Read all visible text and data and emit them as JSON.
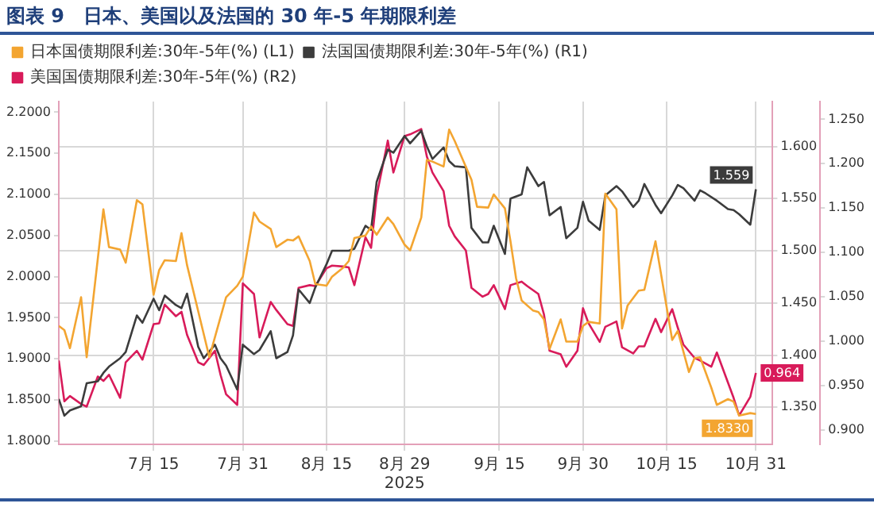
{
  "chart_data": {
    "type": "line",
    "title": "图表 9　日本、美国以及法国的 30 年-5 年期限利差",
    "xlim": [
      "2025-06-28",
      "2025-11-03"
    ],
    "xticks": [
      {
        "value": "2025-07-15",
        "label": "7月 15"
      },
      {
        "value": "2025-07-31",
        "label": "7月 31"
      },
      {
        "value": "2025-08-15",
        "label": "8月 15"
      },
      {
        "value": "2025-08-29",
        "label": "8月 29\n2025"
      },
      {
        "value": "2025-09-15",
        "label": "9月 15"
      },
      {
        "value": "2025-09-30",
        "label": "9月 30"
      },
      {
        "value": "2025-10-15",
        "label": "10月 15"
      },
      {
        "value": "2025-10-31",
        "label": "10月 31"
      }
    ],
    "ylim": [
      1.796,
      2.213
    ],
    "yticks": [
      {
        "value": 1.8,
        "label": "1.8000"
      },
      {
        "value": 1.85,
        "label": "1.8500"
      },
      {
        "value": 1.9,
        "label": "1.9000"
      },
      {
        "value": 1.95,
        "label": "1.9500"
      },
      {
        "value": 2.0,
        "label": "2.0000"
      },
      {
        "value": 2.05,
        "label": "2.0500"
      },
      {
        "value": 2.1,
        "label": "2.1000"
      },
      {
        "value": 2.15,
        "label": "2.1500"
      },
      {
        "value": 2.2,
        "label": "2.2000"
      }
    ],
    "y2lim": [
      1.3145,
      1.643
    ],
    "y2ticks": [
      {
        "value": 1.35,
        "label": "1.350"
      },
      {
        "value": 1.4,
        "label": "1.400"
      },
      {
        "value": 1.45,
        "label": "1.450"
      },
      {
        "value": 1.5,
        "label": "1.500"
      },
      {
        "value": 1.55,
        "label": "1.550"
      },
      {
        "value": 1.6,
        "label": "1.600"
      }
    ],
    "y3lim": [
      0.8835,
      1.27
    ],
    "y3ticks": [
      {
        "value": 0.9,
        "label": "0.900"
      },
      {
        "value": 0.95,
        "label": "0.950"
      },
      {
        "value": 1.0,
        "label": "1.000"
      },
      {
        "value": 1.05,
        "label": "1.050"
      },
      {
        "value": 1.1,
        "label": "1.100"
      },
      {
        "value": 1.15,
        "label": "1.150"
      },
      {
        "value": 1.2,
        "label": "1.200"
      },
      {
        "value": 1.25,
        "label": "1.250"
      }
    ],
    "grid": true,
    "legend": "top left",
    "series": [
      {
        "name": "日本国债期限利差:30年-5年(%) (L1)",
        "color": "#f3a531",
        "axis": "y",
        "x": [
          "2025-06-28",
          "2025-06-29",
          "2025-06-30",
          "2025-07-02",
          "2025-07-03",
          "2025-07-06",
          "2025-07-07",
          "2025-07-09",
          "2025-07-10",
          "2025-07-12",
          "2025-07-13",
          "2025-07-15",
          "2025-07-16",
          "2025-07-17",
          "2025-07-19",
          "2025-07-20",
          "2025-07-21",
          "2025-07-25",
          "2025-07-28",
          "2025-07-30",
          "2025-07-31",
          "2025-08-02",
          "2025-08-03",
          "2025-08-05",
          "2025-08-06",
          "2025-08-08",
          "2025-08-09",
          "2025-08-10",
          "2025-08-12",
          "2025-08-13",
          "2025-08-15",
          "2025-08-16",
          "2025-08-18",
          "2025-08-19",
          "2025-08-20",
          "2025-08-22",
          "2025-08-23",
          "2025-08-24",
          "2025-08-26",
          "2025-08-27",
          "2025-08-29",
          "2025-08-30",
          "2025-09-01",
          "2025-09-02",
          "2025-09-03",
          "2025-09-05",
          "2025-09-06",
          "2025-09-07",
          "2025-09-10",
          "2025-09-11",
          "2025-09-13",
          "2025-09-14",
          "2025-09-16",
          "2025-09-17",
          "2025-09-18",
          "2025-09-19",
          "2025-09-21",
          "2025-09-22",
          "2025-09-23",
          "2025-09-24",
          "2025-09-26",
          "2025-09-27",
          "2025-09-29",
          "2025-09-30",
          "2025-10-01",
          "2025-10-03",
          "2025-10-04",
          "2025-10-06",
          "2025-10-07",
          "2025-10-08",
          "2025-10-10",
          "2025-10-11",
          "2025-10-13",
          "2025-10-16",
          "2025-10-17",
          "2025-10-19",
          "2025-10-20",
          "2025-10-21",
          "2025-10-23",
          "2025-10-24",
          "2025-10-26",
          "2025-10-27",
          "2025-10-28",
          "2025-10-30",
          "2025-10-31"
        ],
        "values": [
          1.94,
          1.935,
          1.913,
          1.975,
          1.902,
          2.082,
          2.036,
          2.033,
          2.017,
          2.093,
          2.088,
          1.978,
          2.008,
          2.02,
          2.019,
          2.053,
          2.014,
          1.902,
          1.975,
          1.989,
          2.0,
          2.078,
          2.067,
          2.058,
          2.036,
          2.045,
          2.044,
          2.049,
          2.019,
          1.991,
          1.989,
          2.0,
          2.011,
          2.019,
          2.047,
          2.05,
          2.061,
          2.051,
          2.072,
          2.064,
          2.039,
          2.032,
          2.072,
          2.142,
          2.14,
          2.134,
          2.179,
          2.165,
          2.118,
          2.085,
          2.084,
          2.1,
          2.083,
          2.043,
          1.998,
          1.971,
          1.959,
          1.957,
          1.948,
          1.912,
          1.948,
          1.921,
          1.921,
          1.94,
          1.945,
          1.943,
          2.101,
          2.082,
          1.937,
          1.965,
          1.983,
          1.984,
          2.043,
          1.923,
          1.934,
          1.884,
          1.901,
          1.902,
          1.865,
          1.844,
          1.851,
          1.848,
          1.831,
          1.834,
          1.833
        ],
        "value_labels": [
          null,
          null,
          null,
          null,
          null,
          null,
          null,
          null,
          null,
          null,
          null,
          null,
          null,
          null,
          null,
          null,
          null,
          null,
          null,
          null,
          null,
          null,
          null,
          null,
          null,
          null,
          null,
          null,
          null,
          null,
          null,
          null,
          null,
          null,
          null,
          null,
          null,
          null,
          null,
          null,
          null,
          null,
          null,
          null,
          null,
          null,
          null,
          null,
          null,
          null,
          null,
          null,
          null,
          null,
          null,
          null,
          null,
          null,
          null,
          null,
          null,
          null,
          null,
          null,
          null,
          null,
          null,
          null,
          null,
          null,
          null,
          null,
          null,
          null,
          null,
          null,
          null,
          null,
          null,
          null,
          null,
          null,
          null,
          null,
          "1.8330"
        ]
      },
      {
        "name": "法国国债期限利差:30年-5年(%) (R1)",
        "color": "#3c3c3c",
        "axis": "y2",
        "x": [
          "2025-06-28",
          "2025-06-29",
          "2025-06-30",
          "2025-07-02",
          "2025-07-03",
          "2025-07-05",
          "2025-07-06",
          "2025-07-07",
          "2025-07-09",
          "2025-07-10",
          "2025-07-12",
          "2025-07-13",
          "2025-07-15",
          "2025-07-16",
          "2025-07-17",
          "2025-07-19",
          "2025-07-20",
          "2025-07-21",
          "2025-07-23",
          "2025-07-24",
          "2025-07-26",
          "2025-07-27",
          "2025-07-28",
          "2025-07-30",
          "2025-07-31",
          "2025-08-02",
          "2025-08-03",
          "2025-08-05",
          "2025-08-06",
          "2025-08-08",
          "2025-08-09",
          "2025-08-10",
          "2025-08-12",
          "2025-08-13",
          "2025-08-15",
          "2025-08-16",
          "2025-08-18",
          "2025-08-19",
          "2025-08-20",
          "2025-08-22",
          "2025-08-23",
          "2025-08-24",
          "2025-08-26",
          "2025-08-27",
          "2025-08-29",
          "2025-08-30",
          "2025-09-01",
          "2025-09-02",
          "2025-09-03",
          "2025-09-05",
          "2025-09-06",
          "2025-09-07",
          "2025-09-09",
          "2025-09-10",
          "2025-09-12",
          "2025-09-13",
          "2025-09-14",
          "2025-09-16",
          "2025-09-17",
          "2025-09-19",
          "2025-09-20",
          "2025-09-22",
          "2025-09-23",
          "2025-09-24",
          "2025-09-26",
          "2025-09-27",
          "2025-09-29",
          "2025-09-30",
          "2025-10-01",
          "2025-10-03",
          "2025-10-04",
          "2025-10-06",
          "2025-10-07",
          "2025-10-09",
          "2025-10-10",
          "2025-10-11",
          "2025-10-13",
          "2025-10-14",
          "2025-10-16",
          "2025-10-17",
          "2025-10-18",
          "2025-10-20",
          "2025-10-21",
          "2025-10-22",
          "2025-10-24",
          "2025-10-26",
          "2025-10-27",
          "2025-10-28",
          "2025-10-30",
          "2025-10-31"
        ],
        "values": [
          1.358,
          1.342,
          1.347,
          1.351,
          1.373,
          1.375,
          1.383,
          1.389,
          1.397,
          1.403,
          1.438,
          1.431,
          1.454,
          1.443,
          1.457,
          1.448,
          1.445,
          1.459,
          1.408,
          1.397,
          1.41,
          1.397,
          1.39,
          1.367,
          1.41,
          1.401,
          1.405,
          1.423,
          1.397,
          1.403,
          1.419,
          1.463,
          1.45,
          1.465,
          1.487,
          1.5,
          1.5,
          1.5,
          1.502,
          1.524,
          1.52,
          1.566,
          1.597,
          1.594,
          1.61,
          1.603,
          1.615,
          1.6,
          1.588,
          1.599,
          1.586,
          1.581,
          1.58,
          1.522,
          1.508,
          1.508,
          1.524,
          1.497,
          1.55,
          1.554,
          1.58,
          1.562,
          1.566,
          1.534,
          1.542,
          1.512,
          1.522,
          1.547,
          1.529,
          1.52,
          1.553,
          1.562,
          1.557,
          1.542,
          1.548,
          1.564,
          1.544,
          1.536,
          1.553,
          1.563,
          1.56,
          1.548,
          1.558,
          1.555,
          1.548,
          1.54,
          1.539,
          1.535,
          1.525,
          1.559
        ],
        "value_labels": [
          null,
          null,
          null,
          null,
          null,
          null,
          null,
          null,
          null,
          null,
          null,
          null,
          null,
          null,
          null,
          null,
          null,
          null,
          null,
          null,
          null,
          null,
          null,
          null,
          null,
          null,
          null,
          null,
          null,
          null,
          null,
          null,
          null,
          null,
          null,
          null,
          null,
          null,
          null,
          null,
          null,
          null,
          null,
          null,
          null,
          null,
          null,
          null,
          null,
          null,
          null,
          null,
          null,
          null,
          null,
          null,
          null,
          null,
          null,
          null,
          null,
          null,
          null,
          null,
          null,
          null,
          null,
          null,
          null,
          null,
          null,
          null,
          null,
          null,
          null,
          null,
          null,
          null,
          null,
          null,
          null,
          null,
          null,
          null,
          null,
          null,
          null,
          null,
          null,
          "1.559"
        ]
      },
      {
        "name": "美国国债期限利差:30年-5年(%) (R2)",
        "color": "#d81b5a",
        "axis": "y3",
        "x": [
          "2025-06-28",
          "2025-06-29",
          "2025-06-30",
          "2025-07-02",
          "2025-07-03",
          "2025-07-05",
          "2025-07-06",
          "2025-07-07",
          "2025-07-09",
          "2025-07-10",
          "2025-07-12",
          "2025-07-13",
          "2025-07-15",
          "2025-07-16",
          "2025-07-17",
          "2025-07-19",
          "2025-07-20",
          "2025-07-21",
          "2025-07-23",
          "2025-07-24",
          "2025-07-26",
          "2025-07-27",
          "2025-07-28",
          "2025-07-30",
          "2025-07-31",
          "2025-08-02",
          "2025-08-03",
          "2025-08-05",
          "2025-08-06",
          "2025-08-08",
          "2025-08-09",
          "2025-08-10",
          "2025-08-12",
          "2025-08-13",
          "2025-08-15",
          "2025-08-16",
          "2025-08-18",
          "2025-08-19",
          "2025-08-20",
          "2025-08-22",
          "2025-08-23",
          "2025-08-24",
          "2025-08-26",
          "2025-08-27",
          "2025-08-29",
          "2025-08-30",
          "2025-09-01",
          "2025-09-02",
          "2025-09-03",
          "2025-09-05",
          "2025-09-06",
          "2025-09-07",
          "2025-09-09",
          "2025-09-10",
          "2025-09-12",
          "2025-09-13",
          "2025-09-14",
          "2025-09-16",
          "2025-09-17",
          "2025-09-19",
          "2025-09-20",
          "2025-09-22",
          "2025-09-23",
          "2025-09-24",
          "2025-09-26",
          "2025-09-27",
          "2025-09-29",
          "2025-09-30",
          "2025-10-01",
          "2025-10-03",
          "2025-10-04",
          "2025-10-06",
          "2025-10-07",
          "2025-10-09",
          "2025-10-10",
          "2025-10-11",
          "2025-10-13",
          "2025-10-14",
          "2025-10-16",
          "2025-10-17",
          "2025-10-18",
          "2025-10-20",
          "2025-10-21",
          "2025-10-23",
          "2025-10-24",
          "2025-10-26",
          "2025-10-27",
          "2025-10-28",
          "2025-10-30",
          "2025-10-31"
        ],
        "values": [
          0.978,
          0.932,
          0.938,
          0.929,
          0.926,
          0.96,
          0.955,
          0.962,
          0.936,
          0.976,
          0.989,
          0.979,
          1.019,
          1.02,
          1.041,
          1.028,
          1.033,
          1.007,
          0.976,
          0.973,
          0.989,
          0.962,
          0.94,
          0.928,
          1.065,
          1.053,
          1.004,
          1.044,
          1.035,
          1.019,
          1.017,
          1.06,
          1.063,
          1.062,
          1.082,
          1.085,
          1.084,
          1.083,
          1.063,
          1.117,
          1.105,
          1.164,
          1.226,
          1.19,
          1.231,
          1.233,
          1.239,
          1.208,
          1.19,
          1.169,
          1.13,
          1.118,
          1.102,
          1.06,
          1.05,
          1.053,
          1.063,
          1.036,
          1.063,
          1.067,
          1.062,
          1.053,
          1.03,
          0.989,
          0.985,
          0.971,
          0.989,
          1.037,
          1.02,
          0.999,
          1.016,
          1.022,
          0.993,
          0.986,
          0.994,
          0.994,
          1.025,
          1.01,
          1.036,
          1.015,
          0.996,
          0.981,
          0.978,
          0.971,
          0.987,
          0.953,
          0.936,
          0.916,
          0.937,
          0.964
        ],
        "value_labels": [
          null,
          null,
          null,
          null,
          null,
          null,
          null,
          null,
          null,
          null,
          null,
          null,
          null,
          null,
          null,
          null,
          null,
          null,
          null,
          null,
          null,
          null,
          null,
          null,
          null,
          null,
          null,
          null,
          null,
          null,
          null,
          null,
          null,
          null,
          null,
          null,
          null,
          null,
          null,
          null,
          null,
          null,
          null,
          null,
          null,
          null,
          null,
          null,
          null,
          null,
          null,
          null,
          null,
          null,
          null,
          null,
          null,
          null,
          null,
          null,
          null,
          null,
          null,
          null,
          null,
          null,
          null,
          null,
          null,
          null,
          null,
          null,
          null,
          null,
          null,
          null,
          null,
          null,
          null,
          null,
          null,
          null,
          null,
          null,
          null,
          null,
          null,
          null,
          null,
          "0.964"
        ]
      }
    ]
  }
}
